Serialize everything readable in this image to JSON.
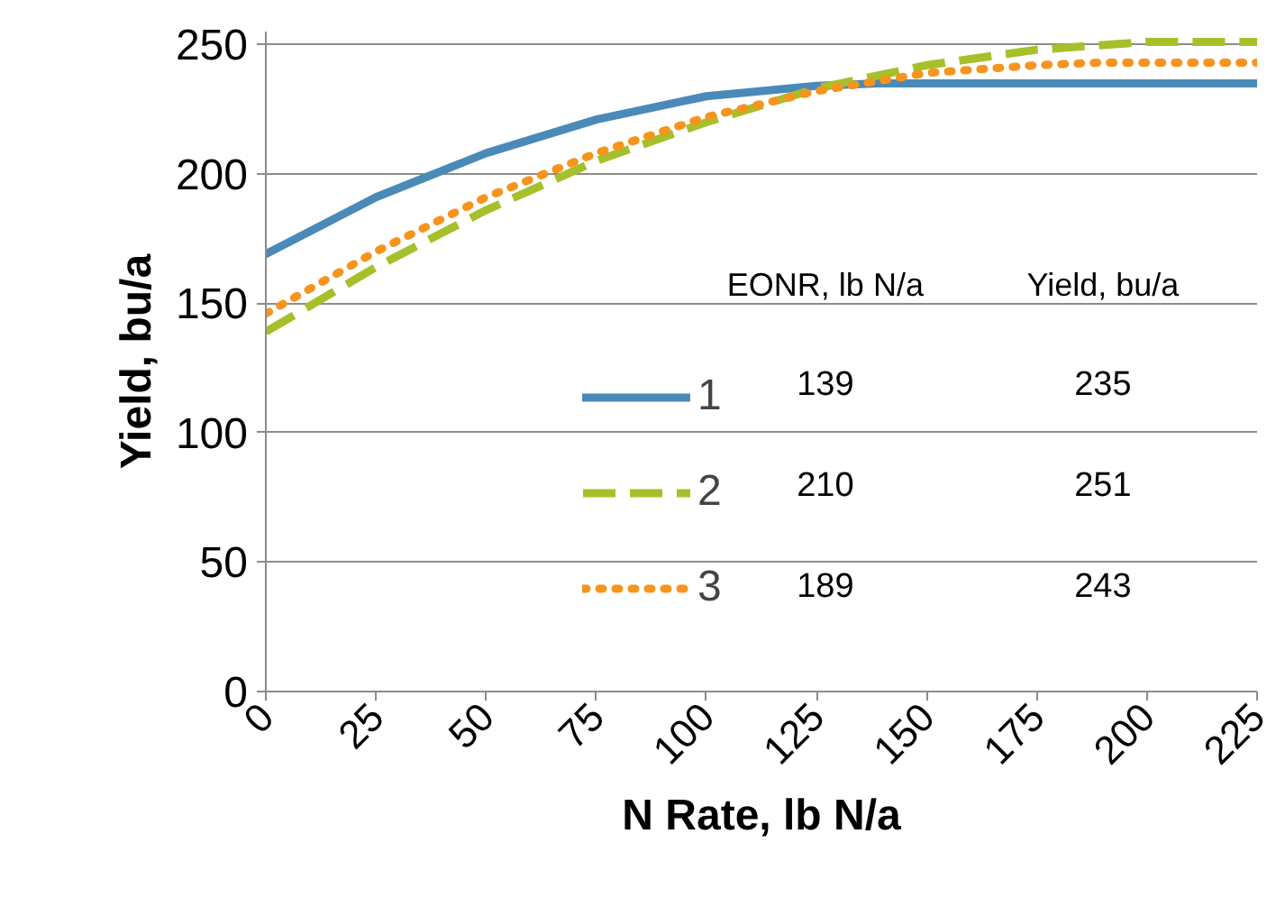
{
  "chart_data": {
    "type": "line",
    "xlabel": "N Rate, lb N/a",
    "ylabel": "Yield, bu/a",
    "series": [
      {
        "name": "1",
        "color": "#4a8ab8",
        "line_style": "solid",
        "x": [
          0,
          25,
          50,
          75,
          100,
          125,
          139,
          150,
          175,
          200,
          225
        ],
        "values": [
          169,
          191,
          208,
          221,
          230,
          234,
          235,
          235,
          235,
          235,
          235
        ]
      },
      {
        "name": "2",
        "color": "#a5c02a",
        "line_style": "dashed",
        "x": [
          0,
          25,
          50,
          75,
          100,
          125,
          150,
          175,
          200,
          210,
          225
        ],
        "values": [
          139,
          164,
          186,
          205,
          220,
          233,
          242,
          248,
          251,
          251,
          251
        ]
      },
      {
        "name": "3",
        "color": "#f7941d",
        "line_style": "dotted",
        "x": [
          0,
          25,
          50,
          75,
          100,
          125,
          150,
          175,
          189,
          200,
          225
        ],
        "values": [
          146,
          170,
          191,
          208,
          222,
          232,
          239,
          242,
          243,
          243,
          243
        ]
      }
    ],
    "xlim": [
      0,
      225
    ],
    "xticks": [
      0,
      25,
      50,
      75,
      100,
      125,
      150,
      175,
      200,
      225
    ],
    "ylim": [
      0,
      255
    ],
    "yticks": [
      0,
      50,
      100,
      150,
      200,
      250
    ],
    "grid": "y",
    "legend": "center",
    "marker": "none",
    "annotations": [
      "EONR, lb N/a",
      "Yield, bu/a",
      "139",
      "235",
      "210",
      "251",
      "189",
      "243"
    ]
  }
}
